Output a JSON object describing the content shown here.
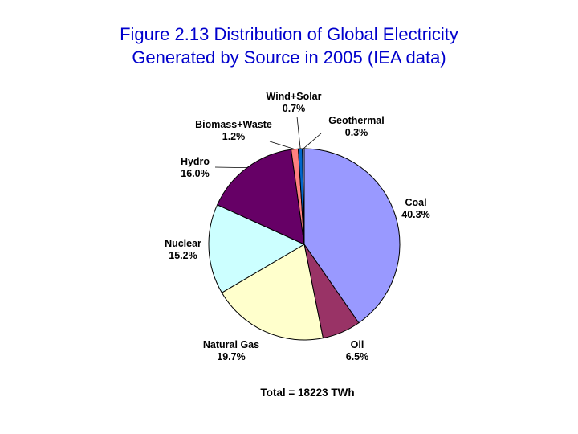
{
  "chart_data": {
    "type": "pie",
    "title_line1": "Figure 2.13 Distribution of Global Electricity",
    "title_line2": "Generated by Source in 2005 (IEA data)",
    "total_label": "Total = 18223 TWh",
    "slices": [
      {
        "name": "Coal",
        "value": 40.3,
        "value_label": "40.3%",
        "color": "#9999ff"
      },
      {
        "name": "Oil",
        "value": 6.5,
        "value_label": "6.5%",
        "color": "#993366"
      },
      {
        "name": "Natural Gas",
        "value": 19.7,
        "value_label": "19.7%",
        "color": "#ffffcc"
      },
      {
        "name": "Nuclear",
        "value": 15.2,
        "value_label": "15.2%",
        "color": "#ccffff"
      },
      {
        "name": "Hydro",
        "value": 16.0,
        "value_label": "16.0%",
        "color": "#660066"
      },
      {
        "name": "Biomass+Waste",
        "value": 1.2,
        "value_label": "1.2%",
        "color": "#ff8080"
      },
      {
        "name": "Wind+Solar",
        "value": 0.7,
        "value_label": "0.7%",
        "color": "#0066cc"
      },
      {
        "name": "Geothermal",
        "value": 0.3,
        "value_label": "0.3%",
        "color": "#ccccff"
      }
    ]
  }
}
